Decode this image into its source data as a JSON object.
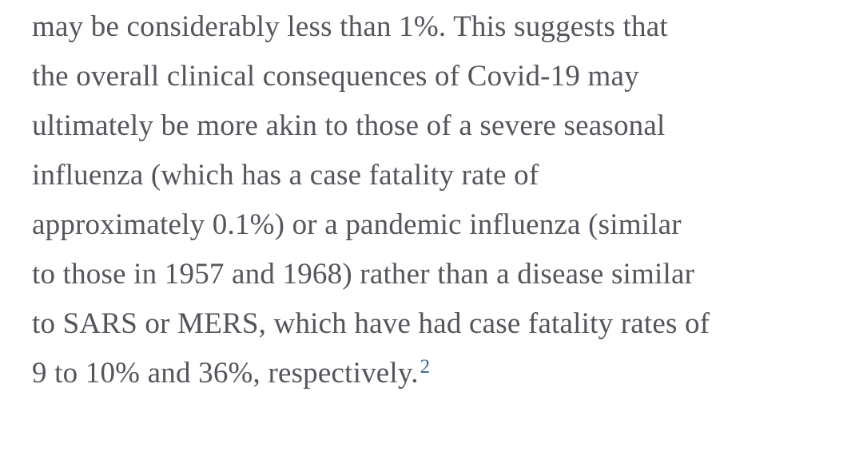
{
  "colors": {
    "background": "#ffffff",
    "body_text": "#53565c",
    "reference_link": "#38678f"
  },
  "paragraph": {
    "lines": [
      "may be considerably less than 1%. This suggests that",
      "the overall clinical consequences of Covid-19 may",
      "ultimately be more akin to those of a severe seasonal",
      "influenza (which has a case fatality rate of",
      "approximately 0.1%) or a pandemic influenza (similar",
      "to those in 1957 and 1968) rather than a disease similar",
      "to SARS or MERS, which have had case fatality rates of",
      "9 to 10% and 36%, respectively."
    ],
    "reference_superscript": "2"
  }
}
